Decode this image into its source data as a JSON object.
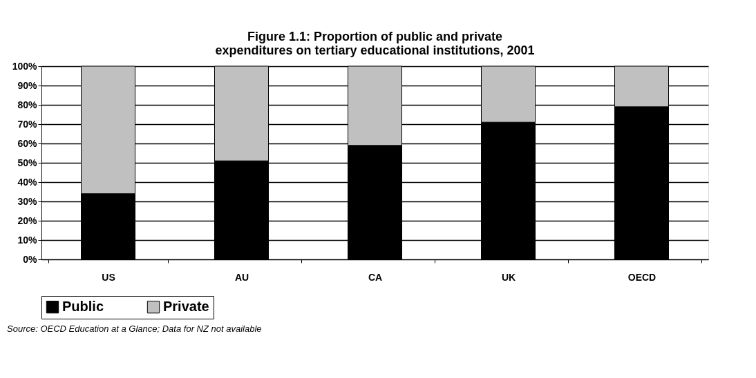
{
  "chart_data": {
    "type": "bar",
    "title": "Figure 1.1: Proportion of public and private expenditures on tertiary educational institutions, 2001",
    "categories": [
      "US",
      "AU",
      "CA",
      "UK",
      "OECD"
    ],
    "series": [
      {
        "name": "Public",
        "color": "#000000",
        "values": [
          34,
          51,
          59,
          71,
          79
        ]
      },
      {
        "name": "Private",
        "color": "#c0c0c0",
        "values": [
          66,
          49,
          41,
          29,
          21
        ]
      }
    ],
    "stacked": true,
    "ylim": [
      0,
      100
    ],
    "yticks": [
      {
        "value": 0,
        "label": "0%"
      },
      {
        "value": 10,
        "label": "10%"
      },
      {
        "value": 20,
        "label": "20%"
      },
      {
        "value": 30,
        "label": "30%"
      },
      {
        "value": 40,
        "label": "40%"
      },
      {
        "value": 50,
        "label": "50%"
      },
      {
        "value": 60,
        "label": "60%"
      },
      {
        "value": 70,
        "label": "70%"
      },
      {
        "value": 80,
        "label": "80%"
      },
      {
        "value": 90,
        "label": "90%"
      },
      {
        "value": 100,
        "label": "100%"
      }
    ],
    "grid": "y",
    "legend": "bottom",
    "annotations": [
      "Source: OECD Education at a Glance; Data for NZ not available"
    ]
  }
}
